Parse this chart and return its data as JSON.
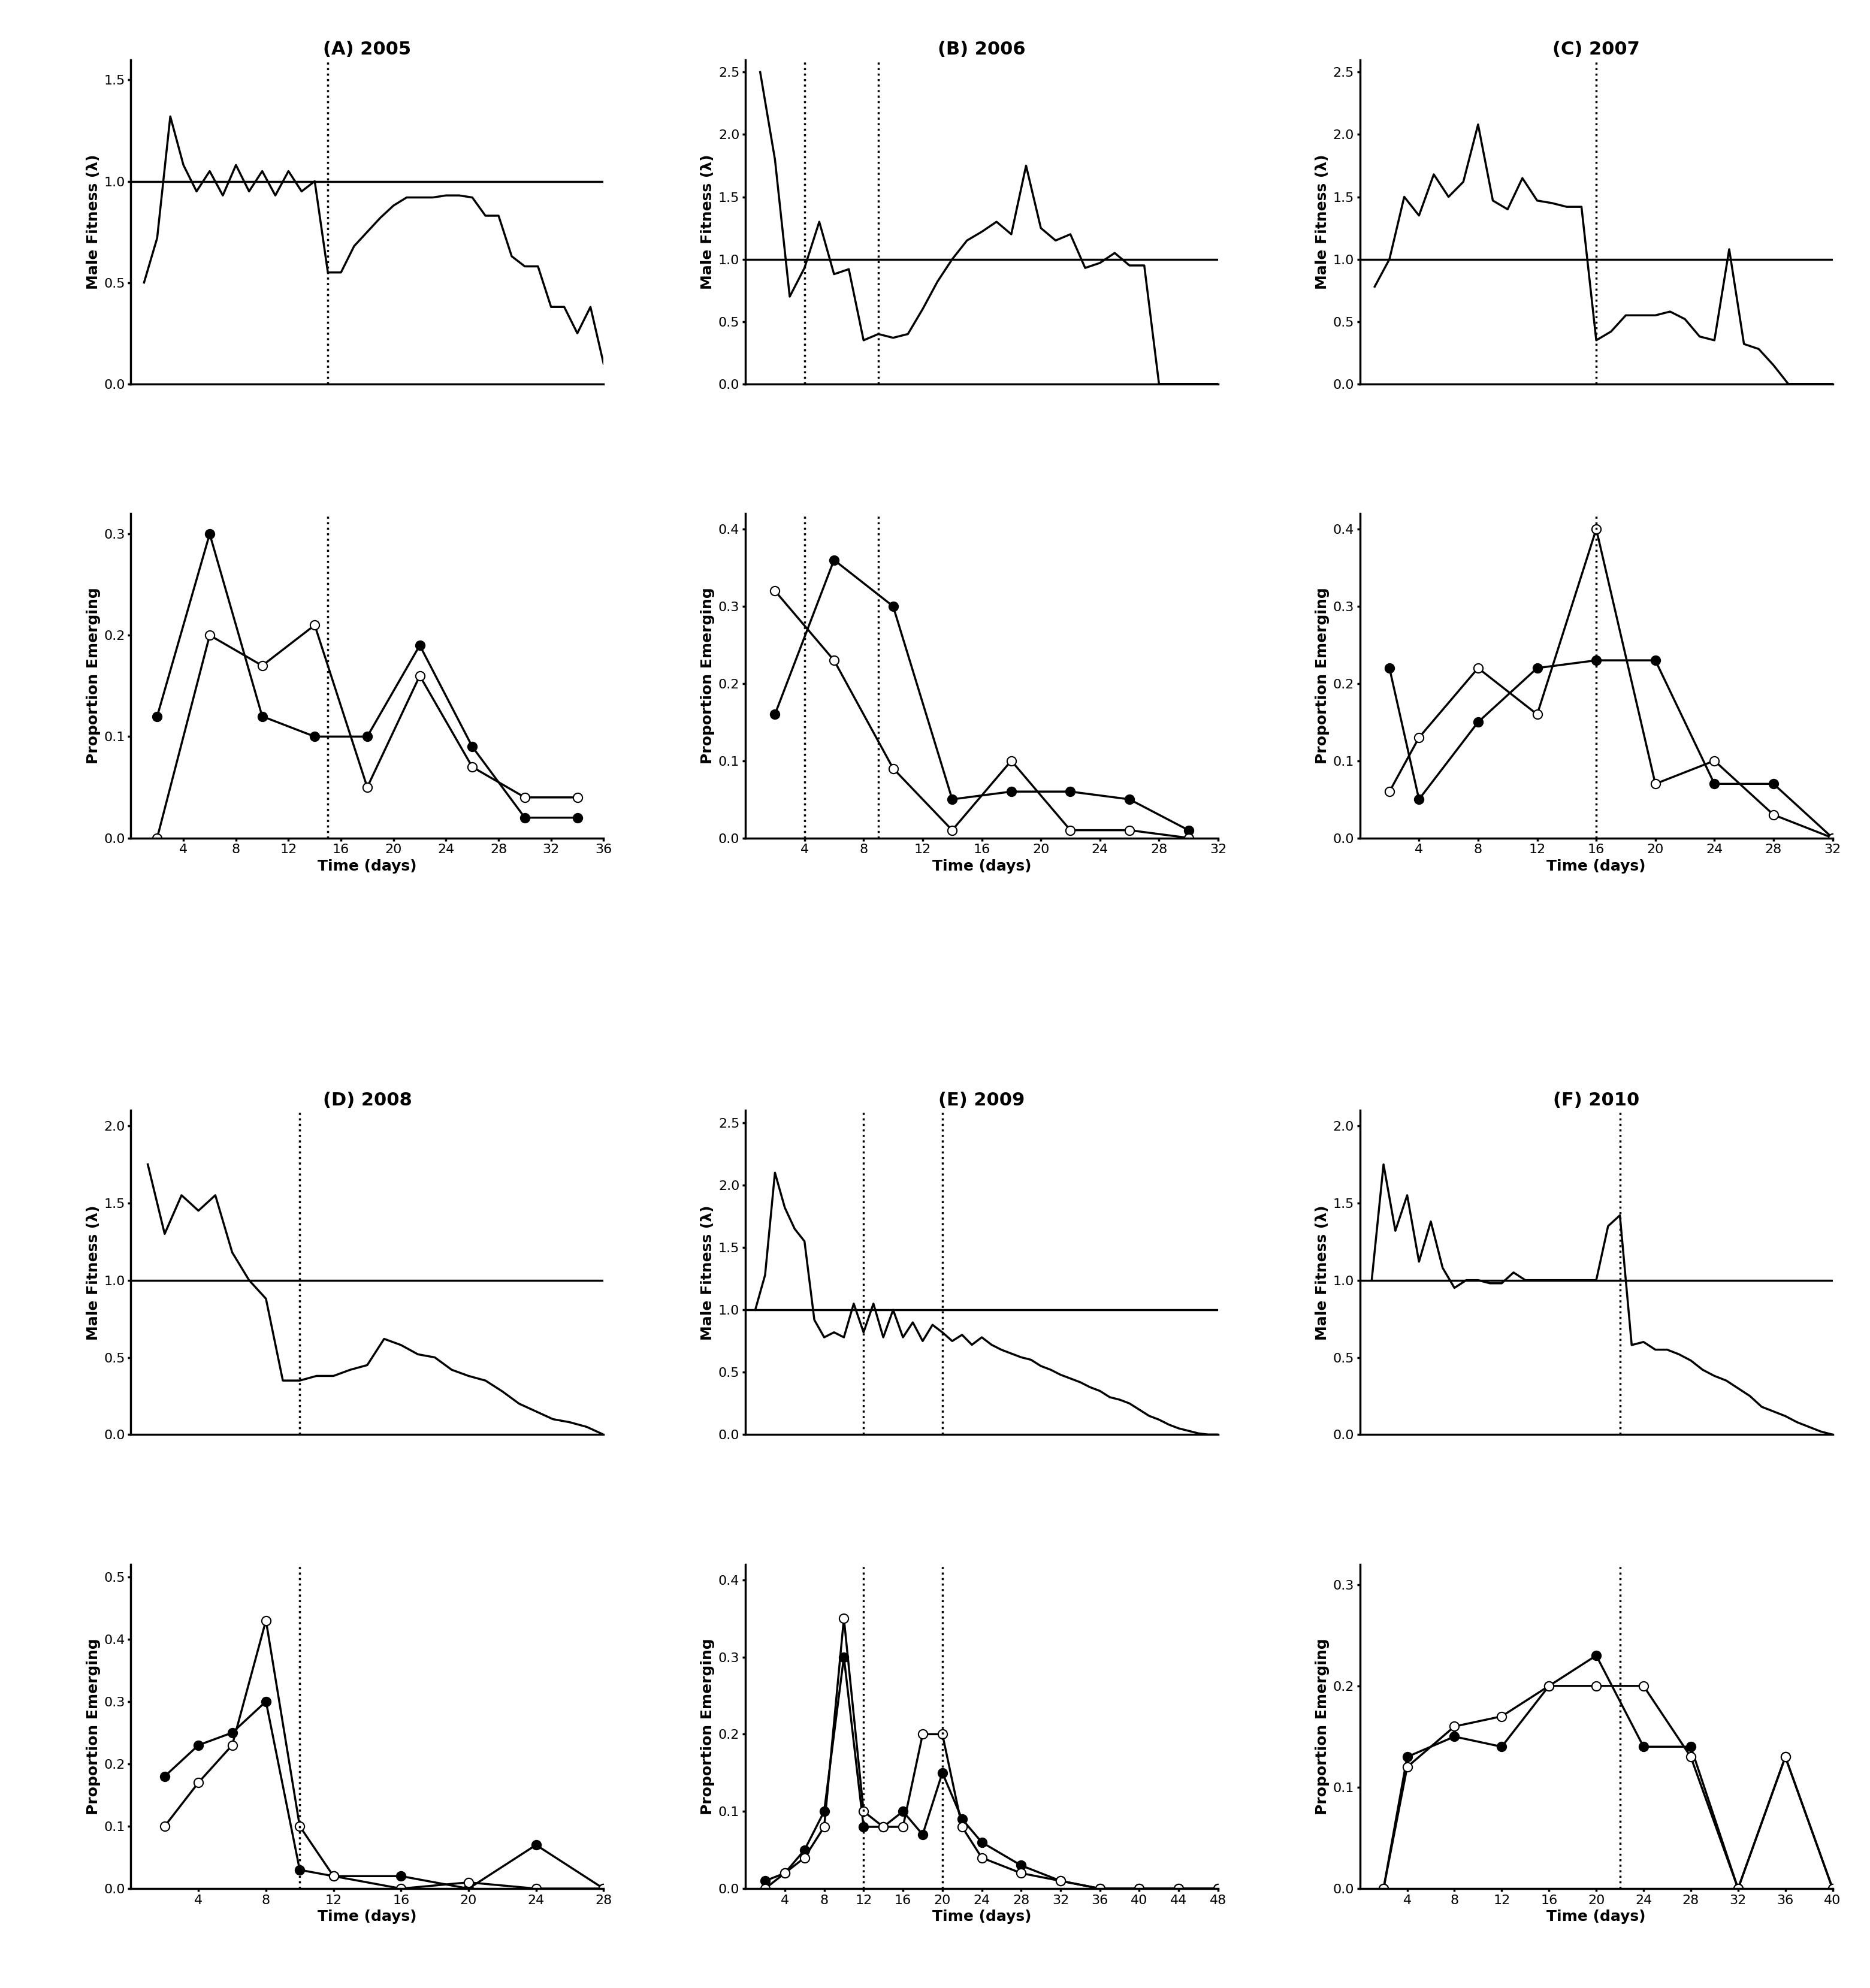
{
  "panels": [
    {
      "title": "(A) 2005",
      "fitness_x": [
        1,
        2,
        3,
        4,
        5,
        6,
        7,
        8,
        9,
        10,
        11,
        12,
        13,
        14,
        15,
        16,
        17,
        18,
        19,
        20,
        21,
        22,
        23,
        24,
        25,
        26,
        27,
        28,
        29,
        30,
        31,
        32,
        33,
        34,
        35,
        36
      ],
      "fitness_y": [
        0.5,
        0.72,
        1.32,
        1.08,
        0.95,
        1.05,
        0.93,
        1.08,
        0.95,
        1.05,
        0.93,
        1.05,
        0.95,
        1.0,
        0.55,
        0.55,
        0.68,
        0.75,
        0.82,
        0.88,
        0.92,
        0.92,
        0.92,
        0.93,
        0.93,
        0.92,
        0.83,
        0.83,
        0.63,
        0.58,
        0.58,
        0.38,
        0.38,
        0.25,
        0.38,
        0.1
      ],
      "fitness_ylim": [
        0,
        1.6
      ],
      "fitness_yticks": [
        0.0,
        0.5,
        1.0,
        1.5
      ],
      "vlines": [
        15
      ],
      "emerge_x_black": [
        2,
        6,
        10,
        14,
        18,
        22,
        26,
        30,
        34
      ],
      "emerge_y_black": [
        0.12,
        0.3,
        0.12,
        0.1,
        0.1,
        0.19,
        0.09,
        0.02,
        0.02
      ],
      "emerge_x_white": [
        2,
        6,
        10,
        14,
        18,
        22,
        26,
        30,
        34
      ],
      "emerge_y_white": [
        0.0,
        0.2,
        0.17,
        0.21,
        0.05,
        0.16,
        0.07,
        0.04,
        0.04
      ],
      "emerge_ylim": [
        0,
        0.32
      ],
      "emerge_yticks": [
        0.0,
        0.1,
        0.2,
        0.3
      ],
      "xmin": 0,
      "xmax": 36,
      "xticks": [
        4,
        8,
        12,
        16,
        20,
        24,
        28,
        32,
        36
      ]
    },
    {
      "title": "(B) 2006",
      "fitness_x": [
        1,
        2,
        3,
        4,
        5,
        6,
        7,
        8,
        9,
        10,
        11,
        12,
        13,
        14,
        15,
        16,
        17,
        18,
        19,
        20,
        21,
        22,
        23,
        24,
        25,
        26,
        27,
        28,
        29,
        30,
        31,
        32
      ],
      "fitness_y": [
        2.5,
        1.8,
        0.7,
        0.93,
        1.3,
        0.88,
        0.92,
        0.35,
        0.4,
        0.37,
        0.4,
        0.6,
        0.82,
        1.0,
        1.15,
        1.22,
        1.3,
        1.2,
        1.75,
        1.25,
        1.15,
        1.2,
        0.93,
        0.97,
        1.05,
        0.95,
        0.95,
        0.0,
        0.0,
        0.0,
        0.0,
        0.0
      ],
      "fitness_ylim": [
        0,
        2.6
      ],
      "fitness_yticks": [
        0.0,
        0.5,
        1.0,
        1.5,
        2.0,
        2.5
      ],
      "vlines": [
        4,
        9
      ],
      "emerge_x_black": [
        2,
        6,
        10,
        14,
        18,
        22,
        26,
        30
      ],
      "emerge_y_black": [
        0.16,
        0.36,
        0.3,
        0.05,
        0.06,
        0.06,
        0.05,
        0.01
      ],
      "emerge_x_white": [
        2,
        6,
        10,
        14,
        18,
        22,
        26,
        30
      ],
      "emerge_y_white": [
        0.32,
        0.23,
        0.09,
        0.01,
        0.1,
        0.01,
        0.01,
        0.0
      ],
      "emerge_ylim": [
        0,
        0.42
      ],
      "emerge_yticks": [
        0.0,
        0.1,
        0.2,
        0.3,
        0.4
      ],
      "xmin": 0,
      "xmax": 32,
      "xticks": [
        4,
        8,
        12,
        16,
        20,
        24,
        28,
        32
      ]
    },
    {
      "title": "(C) 2007",
      "fitness_x": [
        1,
        2,
        3,
        4,
        5,
        6,
        7,
        8,
        9,
        10,
        11,
        12,
        13,
        14,
        15,
        16,
        17,
        18,
        19,
        20,
        21,
        22,
        23,
        24,
        25,
        26,
        27,
        28,
        29,
        30,
        31,
        32
      ],
      "fitness_y": [
        0.78,
        1.0,
        1.5,
        1.35,
        1.68,
        1.5,
        1.62,
        2.08,
        1.47,
        1.4,
        1.65,
        1.47,
        1.45,
        1.42,
        1.42,
        0.35,
        0.42,
        0.55,
        0.55,
        0.55,
        0.58,
        0.52,
        0.38,
        0.35,
        1.08,
        0.32,
        0.28,
        0.15,
        0.0,
        0.0,
        0.0,
        0.0
      ],
      "fitness_ylim": [
        0,
        2.6
      ],
      "fitness_yticks": [
        0.0,
        0.5,
        1.0,
        1.5,
        2.0,
        2.5
      ],
      "vlines": [
        16
      ],
      "emerge_x_black": [
        2,
        4,
        8,
        12,
        16,
        20,
        24,
        28,
        32
      ],
      "emerge_y_black": [
        0.22,
        0.05,
        0.15,
        0.22,
        0.23,
        0.23,
        0.07,
        0.07,
        0.0
      ],
      "emerge_x_white": [
        2,
        4,
        8,
        12,
        16,
        20,
        24,
        28,
        32
      ],
      "emerge_y_white": [
        0.06,
        0.13,
        0.22,
        0.16,
        0.4,
        0.07,
        0.1,
        0.03,
        0.0
      ],
      "emerge_ylim": [
        0,
        0.42
      ],
      "emerge_yticks": [
        0.0,
        0.1,
        0.2,
        0.3,
        0.4
      ],
      "xmin": 0,
      "xmax": 32,
      "xticks": [
        4,
        8,
        12,
        16,
        20,
        24,
        28,
        32
      ]
    },
    {
      "title": "(D) 2008",
      "fitness_x": [
        1,
        2,
        3,
        4,
        5,
        6,
        7,
        8,
        9,
        10,
        11,
        12,
        13,
        14,
        15,
        16,
        17,
        18,
        19,
        20,
        21,
        22,
        23,
        24,
        25,
        26,
        27,
        28
      ],
      "fitness_y": [
        1.75,
        1.3,
        1.55,
        1.45,
        1.55,
        1.18,
        1.0,
        0.88,
        0.35,
        0.35,
        0.38,
        0.38,
        0.42,
        0.45,
        0.62,
        0.58,
        0.52,
        0.5,
        0.42,
        0.38,
        0.35,
        0.28,
        0.2,
        0.15,
        0.1,
        0.08,
        0.05,
        0.0
      ],
      "fitness_ylim": [
        0,
        2.1
      ],
      "fitness_yticks": [
        0.0,
        0.5,
        1.0,
        1.5,
        2.0
      ],
      "vlines": [
        10
      ],
      "emerge_x_black": [
        2,
        4,
        6,
        8,
        10,
        12,
        16,
        20,
        24,
        28
      ],
      "emerge_y_black": [
        0.18,
        0.23,
        0.25,
        0.3,
        0.03,
        0.02,
        0.02,
        0.0,
        0.07,
        0.0
      ],
      "emerge_x_white": [
        2,
        4,
        6,
        8,
        10,
        12,
        16,
        20,
        24,
        28
      ],
      "emerge_y_white": [
        0.1,
        0.17,
        0.23,
        0.43,
        0.1,
        0.02,
        0.0,
        0.01,
        0.0,
        0.0
      ],
      "emerge_ylim": [
        0,
        0.52
      ],
      "emerge_yticks": [
        0.0,
        0.1,
        0.2,
        0.3,
        0.4,
        0.5
      ],
      "xmin": 0,
      "xmax": 28,
      "xticks": [
        4,
        8,
        12,
        16,
        20,
        24,
        28
      ]
    },
    {
      "title": "(E) 2009",
      "fitness_x": [
        1,
        2,
        3,
        4,
        5,
        6,
        7,
        8,
        9,
        10,
        11,
        12,
        13,
        14,
        15,
        16,
        17,
        18,
        19,
        20,
        21,
        22,
        23,
        24,
        25,
        26,
        27,
        28,
        29,
        30,
        31,
        32,
        33,
        34,
        35,
        36,
        37,
        38,
        39,
        40,
        41,
        42,
        43,
        44,
        45,
        46,
        47,
        48
      ],
      "fitness_y": [
        1.0,
        1.28,
        2.1,
        1.82,
        1.65,
        1.55,
        0.92,
        0.78,
        0.82,
        0.78,
        1.05,
        0.82,
        1.05,
        0.78,
        1.0,
        0.78,
        0.9,
        0.75,
        0.88,
        0.82,
        0.75,
        0.8,
        0.72,
        0.78,
        0.72,
        0.68,
        0.65,
        0.62,
        0.6,
        0.55,
        0.52,
        0.48,
        0.45,
        0.42,
        0.38,
        0.35,
        0.3,
        0.28,
        0.25,
        0.2,
        0.15,
        0.12,
        0.08,
        0.05,
        0.03,
        0.01,
        0.0,
        0.0
      ],
      "fitness_ylim": [
        0,
        2.6
      ],
      "fitness_yticks": [
        0.0,
        0.5,
        1.0,
        1.5,
        2.0,
        2.5
      ],
      "vlines": [
        12,
        20
      ],
      "emerge_x_black": [
        2,
        4,
        6,
        8,
        10,
        12,
        14,
        16,
        18,
        20,
        22,
        24,
        28,
        32,
        36,
        40,
        44,
        48
      ],
      "emerge_y_black": [
        0.01,
        0.02,
        0.05,
        0.1,
        0.3,
        0.08,
        0.08,
        0.1,
        0.07,
        0.15,
        0.09,
        0.06,
        0.03,
        0.01,
        0.0,
        0.0,
        0.0,
        0.0
      ],
      "emerge_x_white": [
        2,
        4,
        6,
        8,
        10,
        12,
        14,
        16,
        18,
        20,
        22,
        24,
        28,
        32,
        36,
        40,
        44,
        48
      ],
      "emerge_y_white": [
        0.0,
        0.02,
        0.04,
        0.08,
        0.35,
        0.1,
        0.08,
        0.08,
        0.2,
        0.2,
        0.08,
        0.04,
        0.02,
        0.01,
        0.0,
        0.0,
        0.0,
        0.0
      ],
      "emerge_ylim": [
        0,
        0.42
      ],
      "emerge_yticks": [
        0.0,
        0.1,
        0.2,
        0.3,
        0.4
      ],
      "xmin": 0,
      "xmax": 48,
      "xticks": [
        4,
        8,
        12,
        16,
        20,
        24,
        28,
        32,
        36,
        40,
        44,
        48
      ]
    },
    {
      "title": "(F) 2010",
      "fitness_x": [
        1,
        2,
        3,
        4,
        5,
        6,
        7,
        8,
        9,
        10,
        11,
        12,
        13,
        14,
        15,
        16,
        17,
        18,
        19,
        20,
        21,
        22,
        23,
        24,
        25,
        26,
        27,
        28,
        29,
        30,
        31,
        32,
        33,
        34,
        35,
        36,
        37,
        38,
        39,
        40
      ],
      "fitness_y": [
        1.0,
        1.75,
        1.32,
        1.55,
        1.12,
        1.38,
        1.08,
        0.95,
        1.0,
        1.0,
        0.98,
        0.98,
        1.05,
        1.0,
        1.0,
        1.0,
        1.0,
        1.0,
        1.0,
        1.0,
        1.35,
        1.42,
        0.58,
        0.6,
        0.55,
        0.55,
        0.52,
        0.48,
        0.42,
        0.38,
        0.35,
        0.3,
        0.25,
        0.18,
        0.15,
        0.12,
        0.08,
        0.05,
        0.02,
        0.0
      ],
      "fitness_ylim": [
        0,
        2.1
      ],
      "fitness_yticks": [
        0.0,
        0.5,
        1.0,
        1.5,
        2.0
      ],
      "vlines": [
        22
      ],
      "emerge_x_black": [
        2,
        4,
        8,
        12,
        16,
        20,
        24,
        28,
        32,
        36,
        40
      ],
      "emerge_y_black": [
        0.0,
        0.13,
        0.15,
        0.14,
        0.2,
        0.23,
        0.14,
        0.14,
        0.0,
        0.13,
        0.0
      ],
      "emerge_x_white": [
        2,
        4,
        8,
        12,
        16,
        20,
        24,
        28,
        32,
        36,
        40
      ],
      "emerge_y_white": [
        0.0,
        0.12,
        0.16,
        0.17,
        0.2,
        0.2,
        0.2,
        0.13,
        0.0,
        0.13,
        0.0
      ],
      "emerge_ylim": [
        0,
        0.32
      ],
      "emerge_yticks": [
        0.0,
        0.1,
        0.2,
        0.3
      ],
      "xmin": 0,
      "xmax": 40,
      "xticks": [
        4,
        8,
        12,
        16,
        20,
        24,
        28,
        32,
        36,
        40
      ]
    }
  ],
  "xlabel": "Time (days)",
  "ylabel_fitness": "Male Fitness (λ)",
  "ylabel_emerge": "Proportion Emerging",
  "hline_y": 1.0,
  "linewidth": 2.5,
  "markersize": 11,
  "title_fontsize": 22,
  "label_fontsize": 18,
  "tick_fontsize": 16
}
